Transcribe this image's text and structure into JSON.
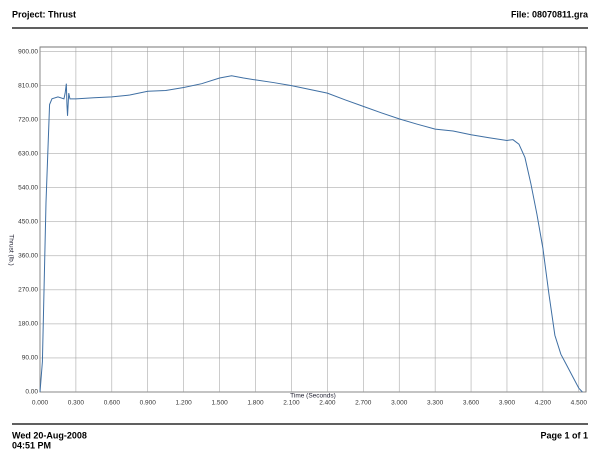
{
  "header": {
    "project": "Project: Thrust",
    "file": "File: 08070811.gra"
  },
  "footer": {
    "date": "Wed 20-Aug-2008",
    "time": "04:51 PM",
    "page": "Page 1 of 1"
  },
  "chart_data": {
    "type": "line",
    "x_label": "Time (Seconds)",
    "y_label": "Thrust (lb.)",
    "color": "#3f6fa3",
    "grid": true,
    "x": [
      0,
      0.02,
      0.05,
      0.08,
      0.1,
      0.15,
      0.2,
      0.21,
      0.22,
      0.225,
      0.23,
      0.24,
      0.25,
      0.3,
      0.45,
      0.6,
      0.75,
      0.9,
      1.05,
      1.2,
      1.35,
      1.5,
      1.6,
      1.7,
      1.8,
      1.95,
      2.1,
      2.25,
      2.4,
      2.55,
      2.7,
      2.85,
      3.0,
      3.15,
      3.3,
      3.45,
      3.6,
      3.75,
      3.9,
      3.95,
      4.0,
      4.05,
      4.1,
      4.15,
      4.2,
      4.25,
      4.3,
      4.35,
      4.4,
      4.45,
      4.5,
      4.53
    ],
    "values": [
      0,
      80,
      500,
      760,
      775,
      780,
      775,
      790,
      815,
      760,
      730,
      790,
      775,
      775,
      778,
      780,
      785,
      795,
      797,
      805,
      815,
      830,
      836,
      830,
      825,
      818,
      810,
      800,
      790,
      772,
      755,
      738,
      722,
      708,
      695,
      690,
      680,
      672,
      665,
      667,
      655,
      620,
      550,
      470,
      380,
      260,
      150,
      100,
      70,
      40,
      10,
      0
    ],
    "xlim": [
      0,
      4.56
    ],
    "ylim": [
      0,
      912
    ],
    "xticks": [
      {
        "value": 0,
        "label": "0.000"
      },
      {
        "value": 0.3,
        "label": "0.300"
      },
      {
        "value": 0.6,
        "label": "0.600"
      },
      {
        "value": 0.9,
        "label": "0.900"
      },
      {
        "value": 1.2,
        "label": "1.200"
      },
      {
        "value": 1.5,
        "label": "1.500"
      },
      {
        "value": 1.8,
        "label": "1.800"
      },
      {
        "value": 2.1,
        "label": "2.100"
      },
      {
        "value": 2.4,
        "label": "2.400"
      },
      {
        "value": 2.7,
        "label": "2.700"
      },
      {
        "value": 3.0,
        "label": "3.000"
      },
      {
        "value": 3.3,
        "label": "3.300"
      },
      {
        "value": 3.6,
        "label": "3.600"
      },
      {
        "value": 3.9,
        "label": "3.900"
      },
      {
        "value": 4.2,
        "label": "4.200"
      },
      {
        "value": 4.5,
        "label": "4.500"
      }
    ],
    "yticks": [
      {
        "value": 0,
        "label": "0.00"
      },
      {
        "value": 90,
        "label": "90.00"
      },
      {
        "value": 180,
        "label": "180.00"
      },
      {
        "value": 270,
        "label": "270.00"
      },
      {
        "value": 360,
        "label": "360.00"
      },
      {
        "value": 450,
        "label": "450.00"
      },
      {
        "value": 540,
        "label": "540.00"
      },
      {
        "value": 630,
        "label": "630.00"
      },
      {
        "value": 720,
        "label": "720.00"
      },
      {
        "value": 810,
        "label": "810.00"
      },
      {
        "value": 900,
        "label": "900.00"
      }
    ]
  }
}
